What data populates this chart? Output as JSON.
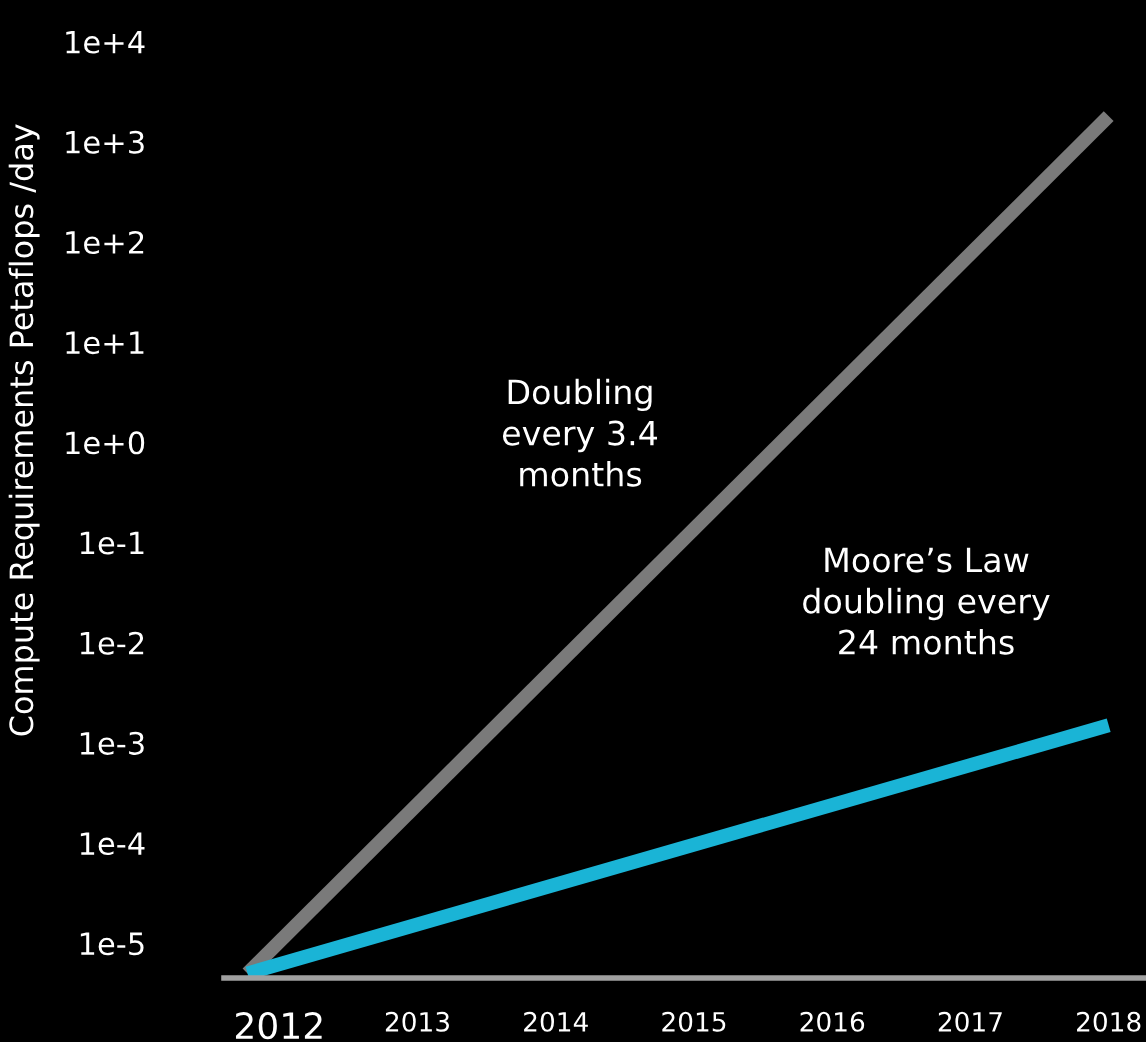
{
  "chart_data": {
    "type": "line",
    "ylabel": "Compute Requirements Petaflops /day",
    "log": "y",
    "series": [
      {
        "color": "#7a7a7a",
        "values": [
          5e-06,
          1800
        ]
      },
      {
        "color": "#1ab4d6",
        "values": [
          5e-06,
          0.0015
        ]
      }
    ],
    "x": [
      2011.77,
      2018
    ],
    "xlim": [
      2011.6,
      2018.27
    ],
    "xticks": [
      2012,
      2013,
      2014,
      2015,
      2016,
      2017,
      2018
    ],
    "ylim": [
      4.5e-06,
      26000
    ],
    "yticks": [
      {
        "value": 1e-05,
        "label": "1e-5"
      },
      {
        "value": 0.0001,
        "label": "1e-4"
      },
      {
        "value": 0.001,
        "label": "1e-3"
      },
      {
        "value": 0.01,
        "label": "1e-2"
      },
      {
        "value": 0.1,
        "label": "1e-1"
      },
      {
        "value": 1,
        "label": "1e+0"
      },
      {
        "value": 10,
        "label": "1e+1"
      },
      {
        "value": 100,
        "label": "1e+2"
      },
      {
        "value": 1000,
        "label": "1e+3"
      },
      {
        "value": 10000,
        "label": "1e+4"
      }
    ],
    "annotations": [
      "Doubling\nevery 3.4\nmonths",
      "Moore’s Law\ndoubling every\n24 months"
    ],
    "grid": false,
    "legend": false,
    "marker": "none",
    "line_style": "solid"
  }
}
